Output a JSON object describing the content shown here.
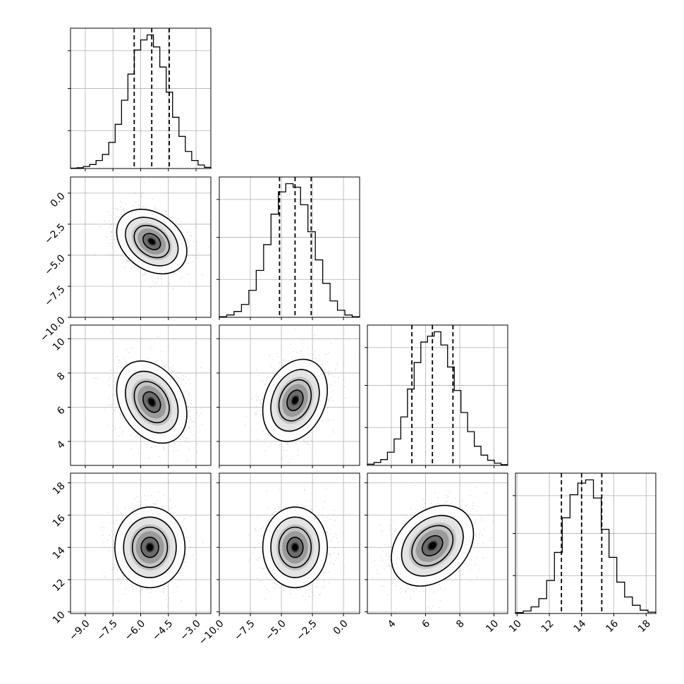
{
  "chart_data": {
    "type": "corner",
    "grid": true,
    "quantile_lines": [
      0.16,
      0.5,
      0.84
    ],
    "contour_levels": 4,
    "parameters": [
      {
        "range": [
          -9.8,
          -2.2
        ],
        "ticks": [
          -9.0,
          -7.5,
          -6.0,
          -4.5,
          -3.0
        ],
        "tick_labels": [
          "−9.0",
          "−7.5",
          "−6.0",
          "−4.5",
          "−3.0"
        ],
        "quantiles": [
          -6.35,
          -5.4,
          -4.45
        ],
        "histogram": [
          0.3,
          0.8,
          2,
          4,
          8,
          14,
          26,
          44,
          68,
          94,
          118,
          128,
          133,
          121,
          101,
          76,
          51,
          32,
          17,
          8,
          3.5,
          1.2
        ]
      },
      {
        "range": [
          -10.0,
          1.3
        ],
        "ticks": [
          -10.0,
          -7.5,
          -5.0,
          -2.5,
          0.0
        ],
        "tick_labels": [
          "−10.0",
          "−7.5",
          "−5.0",
          "−2.5",
          "0.0"
        ],
        "quantiles": [
          -5.15,
          -3.9,
          -2.6
        ],
        "histogram": [
          0.5,
          2,
          5,
          11,
          23,
          40,
          62,
          88,
          107,
          114,
          111,
          96,
          73,
          49,
          29,
          14,
          6,
          2,
          0.5
        ]
      },
      {
        "range": [
          2.6,
          10.8
        ],
        "ticks": [
          4,
          6,
          8,
          10
        ],
        "tick_labels": [
          "4",
          "6",
          "8",
          "10"
        ],
        "quantiles": [
          5.2,
          6.4,
          7.6
        ],
        "histogram": [
          0.8,
          2,
          4,
          9,
          18,
          33,
          52,
          70,
          84,
          88,
          91,
          82,
          67,
          51,
          36,
          23,
          13,
          7,
          3.5,
          1.5,
          0.5
        ]
      },
      {
        "range": [
          9.9,
          18.6
        ],
        "ticks": [
          10,
          12,
          14,
          16,
          18
        ],
        "tick_labels": [
          "10",
          "12",
          "14",
          "16",
          "18"
        ],
        "quantiles": [
          12.75,
          14.0,
          15.25
        ],
        "histogram": [
          0.5,
          1.5,
          4,
          9,
          20,
          37,
          58,
          72,
          79,
          81,
          70,
          51,
          34,
          19,
          10,
          5,
          2,
          0.8
        ]
      }
    ],
    "pairs": [
      {
        "row": 1,
        "col": 0,
        "x_mean": -5.4,
        "y_mean": -3.9,
        "x_sd": 0.95,
        "y_sd": 1.3,
        "corr": -0.3
      },
      {
        "row": 2,
        "col": 0,
        "x_mean": -5.4,
        "y_mean": 6.3,
        "x_sd": 0.95,
        "y_sd": 1.2,
        "corr": -0.3
      },
      {
        "row": 2,
        "col": 1,
        "x_mean": -3.9,
        "y_mean": 6.4,
        "x_sd": 1.3,
        "y_sd": 1.2,
        "corr": 0.25
      },
      {
        "row": 3,
        "col": 0,
        "x_mean": -5.5,
        "y_mean": 14.0,
        "x_sd": 0.95,
        "y_sd": 1.25,
        "corr": 0.0
      },
      {
        "row": 3,
        "col": 1,
        "x_mean": -3.9,
        "y_mean": 14.0,
        "x_sd": 1.3,
        "y_sd": 1.25,
        "corr": 0.0
      },
      {
        "row": 3,
        "col": 2,
        "x_mean": 6.4,
        "y_mean": 14.1,
        "x_sd": 1.2,
        "y_sd": 1.25,
        "corr": 0.3
      }
    ]
  }
}
